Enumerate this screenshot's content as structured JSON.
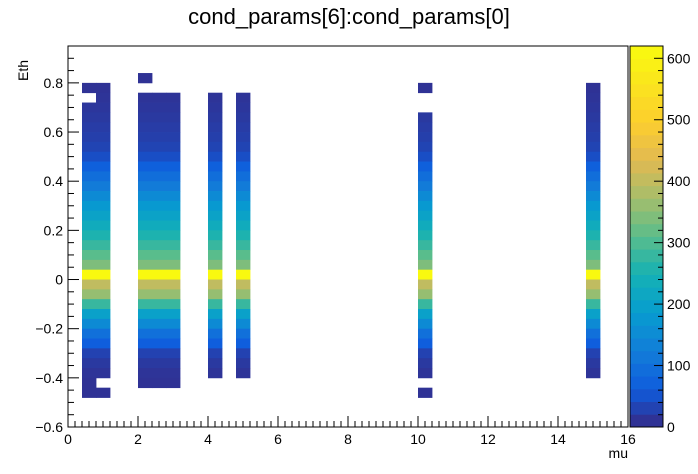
{
  "chart_data": {
    "type": "heatmap",
    "title": "cond_params[6]:cond_params[0]",
    "xlabel": "mu",
    "ylabel": "Eth",
    "xlim": [
      0,
      16
    ],
    "ylim": [
      -0.6,
      0.95
    ],
    "x_ticks": [
      "0",
      "2",
      "4",
      "6",
      "8",
      "10",
      "12",
      "14",
      "16"
    ],
    "y_ticks": [
      "−0.6",
      "−0.4",
      "−0.2",
      "0",
      "0.2",
      "0.4",
      "0.6",
      "0.8"
    ],
    "y_tick_values": [
      -0.6,
      -0.4,
      -0.2,
      0,
      0.2,
      0.4,
      0.6,
      0.8
    ],
    "colorbar": {
      "min": 0,
      "max": 620,
      "ticks": [
        "0",
        "100",
        "200",
        "300",
        "400",
        "500",
        "600"
      ],
      "tick_values": [
        0,
        100,
        200,
        300,
        400,
        500,
        600
      ]
    },
    "bin_width_x": 0.4,
    "bin_height_y": 0.04,
    "profile": [
      {
        "y": 0.76,
        "v": 10
      },
      {
        "y": 0.72,
        "v": 12
      },
      {
        "y": 0.68,
        "v": 15
      },
      {
        "y": 0.64,
        "v": 18
      },
      {
        "y": 0.6,
        "v": 22
      },
      {
        "y": 0.56,
        "v": 26
      },
      {
        "y": 0.52,
        "v": 32
      },
      {
        "y": 0.48,
        "v": 45
      },
      {
        "y": 0.44,
        "v": 70
      },
      {
        "y": 0.4,
        "v": 95
      },
      {
        "y": 0.36,
        "v": 120
      },
      {
        "y": 0.32,
        "v": 150
      },
      {
        "y": 0.28,
        "v": 180
      },
      {
        "y": 0.24,
        "v": 205
      },
      {
        "y": 0.2,
        "v": 230
      },
      {
        "y": 0.16,
        "v": 255
      },
      {
        "y": 0.12,
        "v": 280
      },
      {
        "y": 0.08,
        "v": 310
      },
      {
        "y": 0.04,
        "v": 340
      },
      {
        "y": 0.0,
        "v": 615
      },
      {
        "y": -0.04,
        "v": 400
      },
      {
        "y": -0.08,
        "v": 360
      },
      {
        "y": -0.12,
        "v": 280
      },
      {
        "y": -0.16,
        "v": 200
      },
      {
        "y": -0.2,
        "v": 150
      },
      {
        "y": -0.24,
        "v": 100
      },
      {
        "y": -0.28,
        "v": 65
      },
      {
        "y": -0.32,
        "v": 30
      },
      {
        "y": -0.36,
        "v": 18
      },
      {
        "y": -0.4,
        "v": 12
      }
    ],
    "columns": [
      {
        "x": 0.4,
        "ymin": -0.48,
        "ymax": 0.8
      },
      {
        "x": 0.8,
        "ymin": -0.48,
        "ymax": 0.8
      },
      {
        "x": 2.0,
        "ymin": -0.44,
        "ymax": 0.8
      },
      {
        "x": 2.4,
        "ymin": -0.44,
        "ymax": 0.8
      },
      {
        "x": 2.8,
        "ymin": -0.48,
        "ymax": 0.8
      },
      {
        "x": 4.0,
        "ymin": -0.4,
        "ymax": 0.76
      },
      {
        "x": 4.8,
        "ymin": -0.4,
        "ymax": 0.76
      },
      {
        "x": 10.0,
        "ymin": -0.4,
        "ymax": 0.72
      },
      {
        "x": 14.8,
        "ymin": -0.4,
        "ymax": 0.8
      }
    ],
    "extra_bins": [
      {
        "x": 2.0,
        "y": 0.8,
        "v": 10
      },
      {
        "x": 10.0,
        "y": 0.76,
        "v": 10
      },
      {
        "x": 10.0,
        "y": -0.48,
        "v": 10
      }
    ],
    "missing_bins": [
      {
        "x": 0.4,
        "y": 0.72
      },
      {
        "x": 2.4,
        "y": 0.76
      },
      {
        "x": 2.8,
        "y": -0.48
      },
      {
        "x": 2.8,
        "y": 0.76
      },
      {
        "x": 0.8,
        "y": -0.44
      },
      {
        "x": 2.0,
        "y": 0.76
      },
      {
        "x": 10.0,
        "y": 0.68
      }
    ]
  }
}
